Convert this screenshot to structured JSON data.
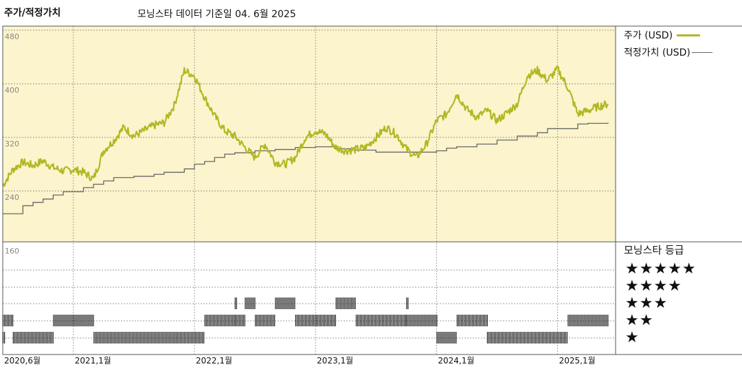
{
  "header": {
    "title": "주가/적정가치",
    "subtitle": "모닝스타 데이터 기준일 04. 6월 2025"
  },
  "legend": {
    "price": "주가 (USD)",
    "fair_value": "적정가치 (USD)"
  },
  "rating_panel": {
    "title": "모닝스타 등급",
    "star_labels": [
      "★★★★★",
      "★★★★",
      "★★★",
      "★★",
      "★"
    ]
  },
  "colors": {
    "price_line": "#b1b823",
    "fair_value_line": "#666666",
    "upper_panel_bg": "#fbf4cc",
    "rating_bar": "#222222"
  },
  "chart_data": {
    "type": "line",
    "title": "주가/적정가치",
    "y_axis": {
      "ylim": [
        160,
        480
      ],
      "tick_labels": [
        "480",
        "400",
        "320",
        "240",
        "160"
      ]
    },
    "x_axis": {
      "range": [
        "2020-06",
        "2025-06"
      ],
      "tick_labels": [
        "2020,6월",
        "2021,1월",
        "2022,1월",
        "2023,1월",
        "2024,1월",
        "2025,1월"
      ]
    },
    "series": [
      {
        "name": "주가 (USD)",
        "points": [
          [
            "2020-06",
            248
          ],
          [
            "2020-07",
            272
          ],
          [
            "2020-08",
            283
          ],
          [
            "2020-09",
            278
          ],
          [
            "2020-10",
            285
          ],
          [
            "2020-11",
            275
          ],
          [
            "2020-12",
            270
          ],
          [
            "2021-01",
            272
          ],
          [
            "2021-02",
            268
          ],
          [
            "2021-03",
            258
          ],
          [
            "2021-04",
            300
          ],
          [
            "2021-05",
            315
          ],
          [
            "2021-06",
            335
          ],
          [
            "2021-07",
            322
          ],
          [
            "2021-08",
            330
          ],
          [
            "2021-09",
            338
          ],
          [
            "2021-10",
            342
          ],
          [
            "2021-11",
            368
          ],
          [
            "2021-12",
            420
          ],
          [
            "2022-01",
            412
          ],
          [
            "2022-02",
            380
          ],
          [
            "2022-03",
            352
          ],
          [
            "2022-04",
            330
          ],
          [
            "2022-05",
            322
          ],
          [
            "2022-06",
            305
          ],
          [
            "2022-07",
            290
          ],
          [
            "2022-08",
            310
          ],
          [
            "2022-09",
            283
          ],
          [
            "2022-10",
            280
          ],
          [
            "2022-11",
            290
          ],
          [
            "2022-12",
            320
          ],
          [
            "2023-01",
            330
          ],
          [
            "2023-02",
            325
          ],
          [
            "2023-03",
            305
          ],
          [
            "2023-04",
            300
          ],
          [
            "2023-05",
            302
          ],
          [
            "2023-06",
            305
          ],
          [
            "2023-07",
            320
          ],
          [
            "2023-08",
            335
          ],
          [
            "2023-09",
            325
          ],
          [
            "2023-10",
            303
          ],
          [
            "2023-11",
            290
          ],
          [
            "2023-12",
            310
          ],
          [
            "2024-01",
            345
          ],
          [
            "2024-02",
            355
          ],
          [
            "2024-03",
            385
          ],
          [
            "2024-04",
            362
          ],
          [
            "2024-05",
            350
          ],
          [
            "2024-06",
            360
          ],
          [
            "2024-07",
            345
          ],
          [
            "2024-08",
            357
          ],
          [
            "2024-09",
            370
          ],
          [
            "2024-10",
            412
          ],
          [
            "2024-11",
            420
          ],
          [
            "2024-12",
            405
          ],
          [
            "2025-01",
            422
          ],
          [
            "2025-02",
            395
          ],
          [
            "2025-03",
            355
          ],
          [
            "2025-04",
            360
          ],
          [
            "2025-05",
            366
          ],
          [
            "2025-06",
            370
          ]
        ]
      },
      {
        "name": "적정가치 (USD)",
        "step_points": [
          [
            "2020-06",
            206
          ],
          [
            "2020-08",
            218
          ],
          [
            "2020-09",
            223
          ],
          [
            "2020-10",
            228
          ],
          [
            "2020-11",
            234
          ],
          [
            "2020-12",
            239
          ],
          [
            "2021-02",
            245
          ],
          [
            "2021-03",
            250
          ],
          [
            "2021-04",
            255
          ],
          [
            "2021-05",
            260
          ],
          [
            "2021-07",
            262
          ],
          [
            "2021-09",
            265
          ],
          [
            "2021-10",
            268
          ],
          [
            "2021-12",
            273
          ],
          [
            "2022-01",
            280
          ],
          [
            "2022-02",
            284
          ],
          [
            "2022-03",
            290
          ],
          [
            "2022-04",
            295
          ],
          [
            "2022-05",
            297
          ],
          [
            "2022-07",
            300
          ],
          [
            "2022-09",
            302
          ],
          [
            "2022-11",
            305
          ],
          [
            "2023-01",
            306
          ],
          [
            "2023-03",
            303
          ],
          [
            "2023-05",
            301
          ],
          [
            "2023-07",
            298
          ],
          [
            "2023-09",
            298
          ],
          [
            "2023-11",
            298
          ],
          [
            "2024-01",
            300
          ],
          [
            "2024-02",
            304
          ],
          [
            "2024-03",
            306
          ],
          [
            "2024-05",
            310
          ],
          [
            "2024-07",
            316
          ],
          [
            "2024-09",
            322
          ],
          [
            "2024-11",
            327
          ],
          [
            "2024-12",
            333
          ],
          [
            "2025-02",
            333
          ],
          [
            "2025-03",
            340
          ],
          [
            "2025-04",
            341
          ],
          [
            "2025-06",
            342
          ]
        ]
      }
    ],
    "rating_history": {
      "levels": [
        "5",
        "4",
        "3",
        "2",
        "1"
      ],
      "segments": [
        {
          "stars": 1,
          "from": "2020-06",
          "to": "2020-06"
        },
        {
          "stars": 2,
          "from": "2020-06",
          "to": "2020-07"
        },
        {
          "stars": 1,
          "from": "2020-07",
          "to": "2020-11"
        },
        {
          "stars": 2,
          "from": "2020-11",
          "to": "2021-03"
        },
        {
          "stars": 1,
          "from": "2021-03",
          "to": "2022-02"
        },
        {
          "stars": 2,
          "from": "2022-02",
          "to": "2022-05"
        },
        {
          "stars": 3,
          "from": "2022-05",
          "to": "2022-05"
        },
        {
          "stars": 2,
          "from": "2022-05",
          "to": "2022-06"
        },
        {
          "stars": 3,
          "from": "2022-06",
          "to": "2022-07"
        },
        {
          "stars": 2,
          "from": "2022-07",
          "to": "2022-09"
        },
        {
          "stars": 3,
          "from": "2022-09",
          "to": "2022-11"
        },
        {
          "stars": 2,
          "from": "2022-11",
          "to": "2023-03"
        },
        {
          "stars": 3,
          "from": "2023-03",
          "to": "2023-05"
        },
        {
          "stars": 2,
          "from": "2023-05",
          "to": "2023-10"
        },
        {
          "stars": 3,
          "from": "2023-10",
          "to": "2023-10"
        },
        {
          "stars": 2,
          "from": "2023-10",
          "to": "2024-01"
        },
        {
          "stars": 1,
          "from": "2024-01",
          "to": "2024-03"
        },
        {
          "stars": 2,
          "from": "2024-03",
          "to": "2024-06"
        },
        {
          "stars": 1,
          "from": "2024-06",
          "to": "2025-02"
        },
        {
          "stars": 2,
          "from": "2025-02",
          "to": "2025-06"
        }
      ]
    }
  }
}
